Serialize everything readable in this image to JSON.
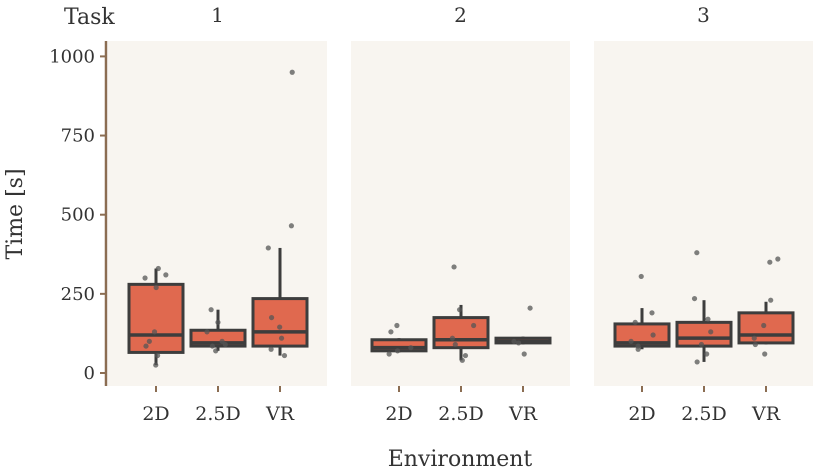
{
  "colors": {
    "panel_bg": "#f8f5f0",
    "box_fill": "#e0694f",
    "box_stroke": "#3d3d3d",
    "axis_line": "#8b6d52",
    "point": "#555555",
    "text": "#333333"
  },
  "facet_label_title": "Task",
  "chart_data": {
    "type": "boxplot",
    "xlabel": "Environment",
    "ylabel": "Time [s]",
    "ylim": [
      0,
      1080
    ],
    "yticks": [
      0,
      250,
      500,
      750,
      1000
    ],
    "categories": [
      "2D",
      "2.5D",
      "VR"
    ],
    "panels": [
      {
        "task": "1",
        "boxes": [
          {
            "category": "2D",
            "min": 25,
            "q1": 65,
            "median": 120,
            "q3": 280,
            "max": 330,
            "points": [
              25,
              55,
              85,
              100,
              130,
              270,
              300,
              310,
              330
            ]
          },
          {
            "category": "2.5D",
            "min": 70,
            "q1": 85,
            "median": 95,
            "q3": 135,
            "max": 200,
            "points": [
              70,
              85,
              90,
              100,
              130,
              160,
              200
            ]
          },
          {
            "category": "VR",
            "min": 55,
            "q1": 85,
            "median": 130,
            "q3": 235,
            "max": 395,
            "points": [
              55,
              75,
              110,
              145,
              175,
              395,
              465,
              950
            ]
          }
        ]
      },
      {
        "task": "2",
        "boxes": [
          {
            "category": "2D",
            "min": 65,
            "q1": 70,
            "median": 80,
            "q3": 105,
            "max": 110,
            "points": [
              60,
              70,
              80,
              130,
              150
            ]
          },
          {
            "category": "2.5D",
            "min": 40,
            "q1": 80,
            "median": 105,
            "q3": 175,
            "max": 215,
            "points": [
              40,
              55,
              90,
              110,
              150,
              200,
              335
            ]
          },
          {
            "category": "VR",
            "min": 90,
            "q1": 95,
            "median": 100,
            "q3": 110,
            "max": 115,
            "points": [
              60,
              95,
              100,
              205
            ]
          }
        ]
      },
      {
        "task": "3",
        "boxes": [
          {
            "category": "2D",
            "min": 75,
            "q1": 85,
            "median": 95,
            "q3": 155,
            "max": 205,
            "points": [
              75,
              85,
              100,
              120,
              160,
              190,
              305
            ]
          },
          {
            "category": "2.5D",
            "min": 35,
            "q1": 85,
            "median": 110,
            "q3": 160,
            "max": 230,
            "points": [
              35,
              60,
              90,
              130,
              170,
              235,
              380
            ]
          },
          {
            "category": "VR",
            "min": 90,
            "q1": 95,
            "median": 120,
            "q3": 190,
            "max": 225,
            "points": [
              60,
              90,
              110,
              150,
              230,
              350,
              360
            ]
          }
        ]
      }
    ]
  }
}
